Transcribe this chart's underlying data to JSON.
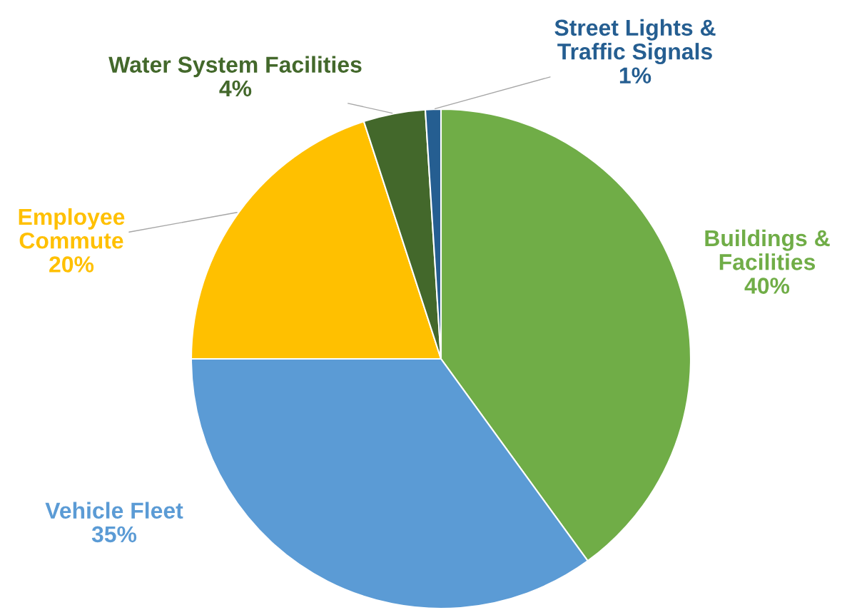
{
  "chart_data": {
    "type": "pie",
    "categories": [
      "Buildings &\nFacilities",
      "Vehicle Fleet",
      "Employee\nCommute",
      "Water System Facilities",
      "Street Lights &\nTraffic Signals"
    ],
    "values": [
      40,
      35,
      20,
      4,
      1
    ],
    "colors": [
      "#70ad47",
      "#5b9bd5",
      "#ffc000",
      "#43682b",
      "#255e91"
    ],
    "value_labels": [
      "40%",
      "35%",
      "20%",
      "4%",
      "1%"
    ]
  }
}
